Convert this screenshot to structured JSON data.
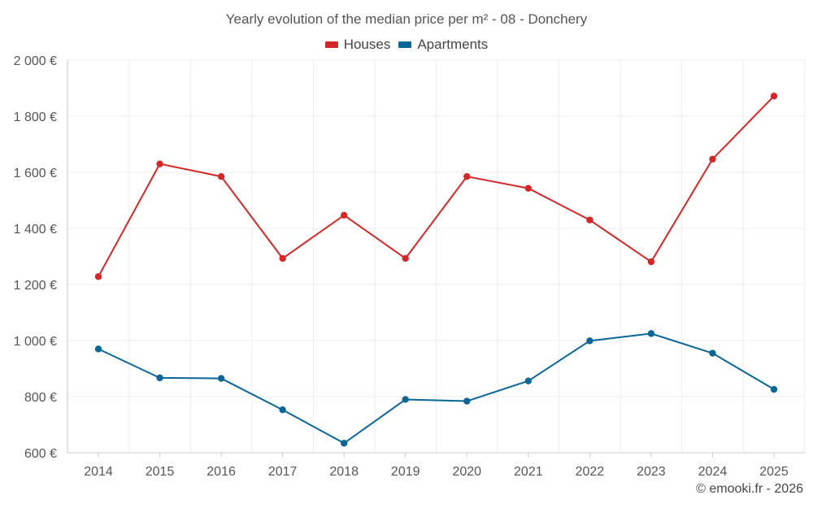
{
  "chart_data": {
    "type": "line",
    "title": "Yearly evolution of the median price per m² - 08 - Donchery",
    "categories": [
      "2014",
      "2015",
      "2016",
      "2017",
      "2018",
      "2019",
      "2020",
      "2021",
      "2022",
      "2023",
      "2024",
      "2025"
    ],
    "series": [
      {
        "name": "Houses",
        "color": "#d62728",
        "values": [
          1228,
          1630,
          1585,
          1293,
          1447,
          1293,
          1585,
          1543,
          1430,
          1281,
          1647,
          1872
        ]
      },
      {
        "name": "Apartments",
        "color": "#0a6696",
        "values": [
          970,
          867,
          865,
          753,
          634,
          790,
          784,
          856,
          999,
          1025,
          955,
          826
        ]
      }
    ],
    "ylim": [
      600,
      2000
    ],
    "yticks": [
      600,
      800,
      1000,
      1200,
      1400,
      1600,
      1800,
      2000
    ],
    "ytick_labels": [
      "600 €",
      "800 €",
      "1 000 €",
      "1 200 €",
      "1 400 €",
      "1 600 €",
      "1 800 €",
      "2 000 €"
    ],
    "xlabel": "",
    "ylabel": "",
    "grid": true,
    "legend_position": "top-center"
  },
  "credit": "© emooki.fr - 2026"
}
